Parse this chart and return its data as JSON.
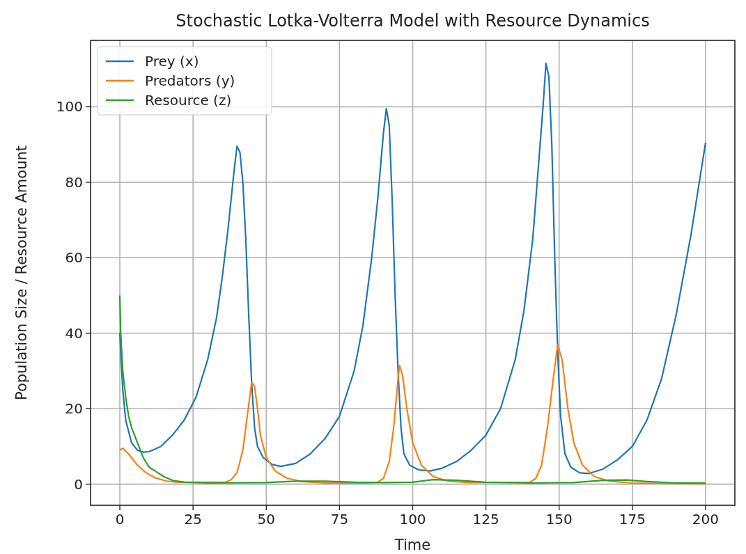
{
  "chart_data": {
    "type": "line",
    "title": "Stochastic Lotka-Volterra Model with Resource Dynamics",
    "xlabel": "Time",
    "ylabel": "Population Size / Resource Amount",
    "xlim": [
      -10,
      210
    ],
    "ylim": [
      -5.6,
      117.6
    ],
    "xticks": [
      0,
      25,
      50,
      75,
      100,
      125,
      150,
      175,
      200
    ],
    "yticks": [
      0,
      20,
      40,
      60,
      80,
      100
    ],
    "grid": true,
    "legend": "top left",
    "series": [
      {
        "name": "Prey (x)",
        "color": "#1f77b4",
        "x": [
          0,
          1,
          2,
          4,
          6,
          8,
          10,
          14,
          18,
          22,
          26,
          30,
          33,
          35,
          37,
          39,
          40,
          41,
          42,
          43,
          44,
          45,
          46,
          47,
          49,
          52,
          55,
          60,
          65,
          70,
          75,
          80,
          83,
          86,
          88,
          90,
          91,
          92,
          93,
          94,
          95,
          96,
          97,
          99,
          102,
          106,
          110,
          115,
          120,
          125,
          130,
          135,
          138,
          141,
          143,
          144.5,
          145.5,
          146.5,
          147.5,
          148.5,
          149.5,
          150.5,
          152,
          154,
          157,
          160,
          165,
          170,
          175,
          180,
          185,
          190,
          195,
          200
        ],
        "values": [
          40,
          25,
          17,
          11,
          9,
          8.5,
          8.6,
          10,
          13,
          17,
          23,
          33,
          44,
          55,
          68,
          83,
          89.5,
          88,
          80,
          65,
          45,
          27,
          15,
          10,
          7,
          5.2,
          4.7,
          5.5,
          8,
          12,
          18,
          30,
          42,
          60,
          75,
          93,
          99.5,
          95,
          75,
          50,
          30,
          15,
          8,
          5,
          3.8,
          3.5,
          4.2,
          6,
          9,
          13,
          20,
          33,
          46,
          65,
          85,
          100,
          111.5,
          108,
          90,
          60,
          35,
          18,
          8,
          4.5,
          3,
          2.8,
          4,
          6.5,
          10,
          17,
          28,
          45,
          66,
          90.5
        ]
      },
      {
        "name": "Predators (y)",
        "color": "#ff7f0e",
        "x": [
          0,
          1,
          3,
          6,
          9,
          12,
          16,
          20,
          36,
          38,
          40,
          42,
          43.5,
          45,
          46,
          47,
          48,
          50,
          53,
          57,
          62,
          70,
          84,
          88,
          90,
          92,
          93.5,
          95,
          95.5,
          96.5,
          98,
          100,
          103,
          107,
          112,
          120,
          140,
          142,
          144,
          146,
          148,
          149.5,
          151,
          153,
          155,
          158,
          162,
          167,
          175,
          200
        ],
        "values": [
          9,
          9.5,
          8,
          5,
          3,
          1.7,
          0.8,
          0.5,
          0.5,
          1.2,
          3,
          9,
          18,
          27,
          26,
          20,
          13,
          7,
          3.5,
          1.6,
          0.7,
          0.3,
          0.3,
          0.5,
          1.5,
          6,
          15,
          28,
          31.5,
          29,
          20,
          11,
          5,
          2,
          0.8,
          0.4,
          0.5,
          1.5,
          5,
          15,
          28,
          37,
          33,
          20,
          11,
          5,
          2,
          0.8,
          0.3,
          0.1
        ]
      },
      {
        "name": "Resource (z)",
        "color": "#2ca02c",
        "x": [
          0,
          0.3,
          1,
          2,
          3,
          4,
          6,
          8,
          10,
          12,
          15,
          18,
          22,
          30,
          50,
          60,
          70,
          80,
          90,
          100,
          107,
          115,
          125,
          140,
          155,
          165,
          173,
          180,
          190,
          200
        ],
        "values": [
          50,
          40,
          30,
          23,
          18,
          15,
          11,
          7,
          4.5,
          3.5,
          2,
          1,
          0.5,
          0.3,
          0.4,
          0.8,
          0.8,
          0.5,
          0.4,
          0.5,
          1.2,
          1,
          0.5,
          0.3,
          0.4,
          1,
          1.1,
          0.7,
          0.3,
          0.3
        ]
      }
    ]
  }
}
